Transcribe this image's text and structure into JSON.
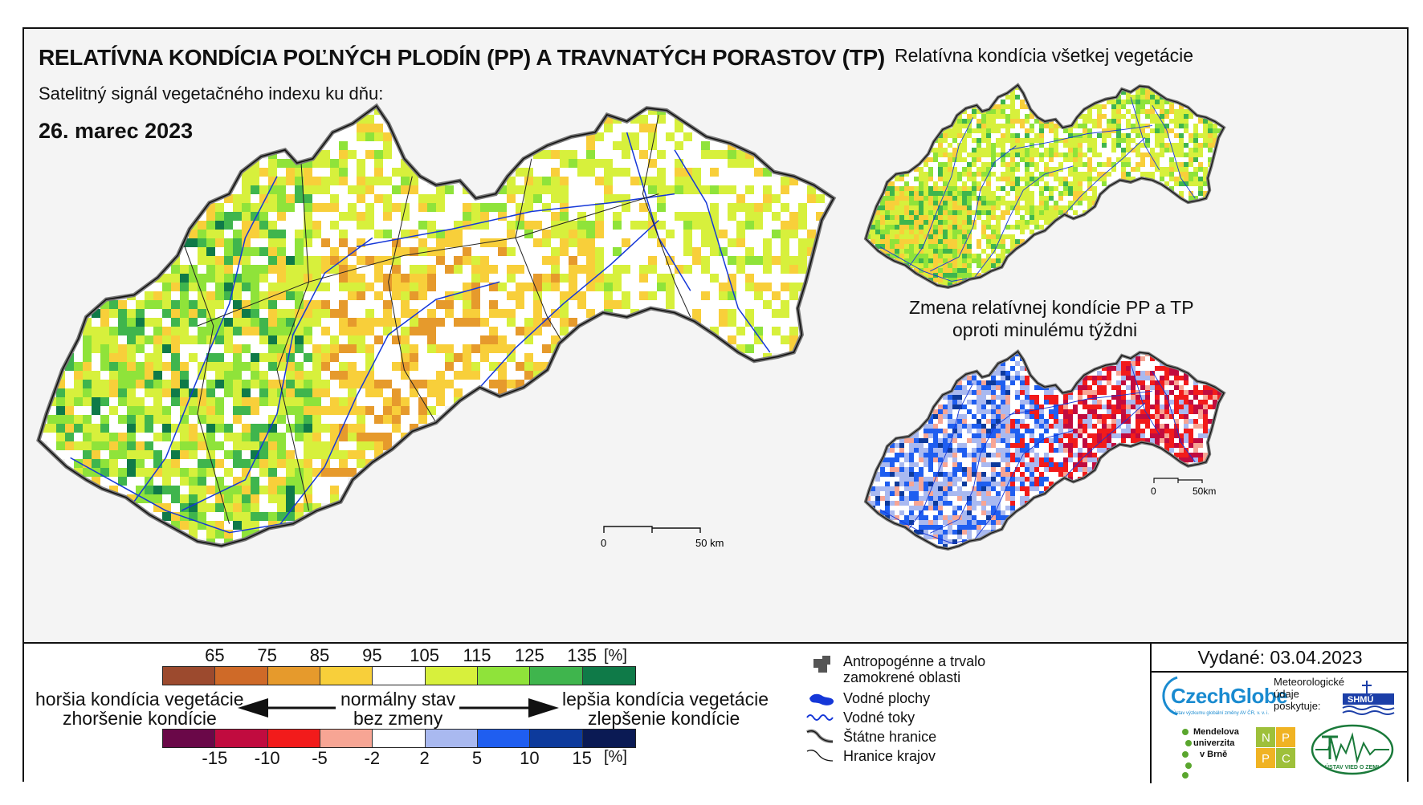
{
  "title": "RELATÍVNA KONDÍCIA POĽNÝCH PLODÍN (PP) A TRAVNATÝCH PORASTOV (TP)",
  "subtitle": "Satelitný signál vegetačného indexu ku dňu:",
  "date": "26. marec 2023",
  "inset_top_title": "Relatívna kondícia všetkej vegetácie",
  "inset_bottom_title_line1": "Zmena relatívnej kondície PP a TP",
  "inset_bottom_title_line2": "oproti minulému týždni",
  "main_scale": {
    "zero": "0",
    "label": "50 km"
  },
  "inset_scale": {
    "zero": "0",
    "label": "50km"
  },
  "legend_condition": {
    "ticks": [
      "65",
      "75",
      "85",
      "95",
      "105",
      "115",
      "125",
      "135"
    ],
    "unit": "[%]",
    "colors": [
      "#9c4a2e",
      "#cf6a28",
      "#e69a2c",
      "#f8cf3a",
      "#ffffff",
      "#d7f03c",
      "#8fe33a",
      "#3fb54d",
      "#0f7a48"
    ]
  },
  "legend_change": {
    "ticks": [
      "-15",
      "-10",
      "-5",
      "-2",
      "2",
      "5",
      "10",
      "15"
    ],
    "unit": "[%]",
    "colors": [
      "#6a0848",
      "#c10b3f",
      "#f21b1b",
      "#f7a594",
      "#ffffff",
      "#a9b9f0",
      "#1f5ef0",
      "#0d3a9c",
      "#0a1a54"
    ]
  },
  "legend_text": {
    "worse_1": "horšia kondícia vegetácie",
    "worse_2": "zhoršenie kondície",
    "normal_1": "normálny stav",
    "normal_2": "bez zmeny",
    "better_1": "lepšia kondícia vegetácie",
    "better_2": "zlepšenie kondície"
  },
  "symbols": {
    "urban_1": "Antropogénne a trvalo",
    "urban_2": "zamokrené oblasti",
    "water_bodies": "Vodné plochy",
    "rivers": "Vodné toky",
    "state_border": "Štátne hranice",
    "region_border": "Hranice krajov"
  },
  "issued": "Vydané: 03.04.2023",
  "logos": {
    "czechglobe": "CzechGlobe",
    "czechglobe_sub": "Ústav výzkumu globální změny AV ČR, v. v. i.",
    "meteo_1": "Meteorologické",
    "meteo_2": "údaje",
    "meteo_3": "poskytuje:",
    "shmu": "SHMÚ",
    "mendel_1": "Mendelova",
    "mendel_2": "univerzita",
    "mendel_3": "v Brně",
    "nppc": [
      "N",
      "P",
      "P",
      "C"
    ],
    "uvz": "ÚSTAV VIED O ZEMI"
  }
}
